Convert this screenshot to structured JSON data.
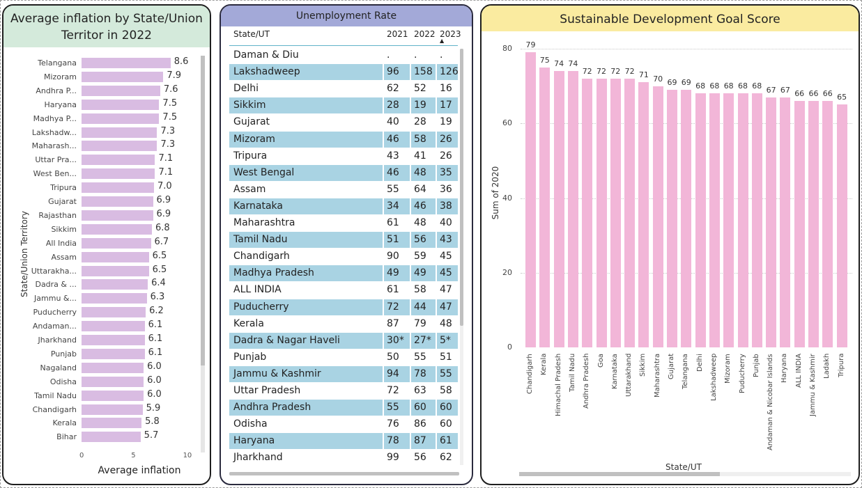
{
  "inflation": {
    "title": "Average inflation by State/Union Territor in 2022",
    "xlabel": "Average inflation",
    "ylabel": "State/Union Territory",
    "xticks": [
      "0",
      "5",
      "10"
    ],
    "max": 10.5,
    "rows": [
      {
        "label": "Telangana",
        "value": 8.6,
        "text": "8.6"
      },
      {
        "label": "Mizoram",
        "value": 7.9,
        "text": "7.9"
      },
      {
        "label": "Andhra P...",
        "value": 7.6,
        "text": "7.6"
      },
      {
        "label": "Haryana",
        "value": 7.5,
        "text": "7.5"
      },
      {
        "label": "Madhya P...",
        "value": 7.5,
        "text": "7.5"
      },
      {
        "label": "Lakshadw...",
        "value": 7.3,
        "text": "7.3"
      },
      {
        "label": "Maharash...",
        "value": 7.3,
        "text": "7.3"
      },
      {
        "label": "Uttar Pra...",
        "value": 7.1,
        "text": "7.1"
      },
      {
        "label": "West Ben...",
        "value": 7.1,
        "text": "7.1"
      },
      {
        "label": "Tripura",
        "value": 7.0,
        "text": "7.0"
      },
      {
        "label": "Gujarat",
        "value": 6.9,
        "text": "6.9"
      },
      {
        "label": "Rajasthan",
        "value": 6.9,
        "text": "6.9"
      },
      {
        "label": "Sikkim",
        "value": 6.8,
        "text": "6.8"
      },
      {
        "label": "All India",
        "value": 6.7,
        "text": "6.7"
      },
      {
        "label": "Assam",
        "value": 6.5,
        "text": "6.5"
      },
      {
        "label": "Uttarakha...",
        "value": 6.5,
        "text": "6.5"
      },
      {
        "label": "Dadra & ...",
        "value": 6.4,
        "text": "6.4"
      },
      {
        "label": "Jammu &...",
        "value": 6.3,
        "text": "6.3"
      },
      {
        "label": "Puducherry",
        "value": 6.2,
        "text": "6.2"
      },
      {
        "label": "Andaman...",
        "value": 6.1,
        "text": "6.1"
      },
      {
        "label": "Jharkhand",
        "value": 6.1,
        "text": "6.1"
      },
      {
        "label": "Punjab",
        "value": 6.1,
        "text": "6.1"
      },
      {
        "label": "Nagaland",
        "value": 6.0,
        "text": "6.0"
      },
      {
        "label": "Odisha",
        "value": 6.0,
        "text": "6.0"
      },
      {
        "label": "Tamil Nadu",
        "value": 6.0,
        "text": "6.0"
      },
      {
        "label": "Chandigarh",
        "value": 5.9,
        "text": "5.9"
      },
      {
        "label": "Kerala",
        "value": 5.8,
        "text": "5.8"
      },
      {
        "label": "Bihar",
        "value": 5.7,
        "text": "5.7"
      }
    ]
  },
  "unemployment": {
    "title": "Unemployment Rate",
    "headers": [
      "State/UT",
      "2021",
      "2022",
      "2023"
    ],
    "rows": [
      [
        "Daman & Diu",
        ".",
        ".",
        "."
      ],
      [
        "Lakshadweep",
        "96",
        "158",
        "126"
      ],
      [
        "Delhi",
        "62",
        "52",
        "16"
      ],
      [
        "Sikkim",
        "28",
        "19",
        "17"
      ],
      [
        "Gujarat",
        "40",
        "28",
        "19"
      ],
      [
        "Mizoram",
        "46",
        "58",
        "26"
      ],
      [
        "Tripura",
        "43",
        "41",
        "26"
      ],
      [
        "West Bengal",
        "46",
        "48",
        "35"
      ],
      [
        "Assam",
        "55",
        "64",
        "36"
      ],
      [
        "Karnataka",
        "34",
        "46",
        "38"
      ],
      [
        "Maharashtra",
        "61",
        "48",
        "40"
      ],
      [
        "Tamil Nadu",
        "51",
        "56",
        "43"
      ],
      [
        "Chandigarh",
        "90",
        "59",
        "45"
      ],
      [
        "Madhya Pradesh",
        "49",
        "49",
        "45"
      ],
      [
        "ALL INDIA",
        "61",
        "58",
        "47"
      ],
      [
        "Puducherry",
        "72",
        "44",
        "47"
      ],
      [
        "Kerala",
        "87",
        "79",
        "48"
      ],
      [
        "Dadra & Nagar Haveli",
        "30*",
        "27*",
        "5*"
      ],
      [
        "Punjab",
        "50",
        "55",
        "51"
      ],
      [
        "Jammu & Kashmir",
        "94",
        "78",
        "55"
      ],
      [
        "Uttar Pradesh",
        "72",
        "63",
        "58"
      ],
      [
        "Andhra Pradesh",
        "55",
        "60",
        "60"
      ],
      [
        "Odisha",
        "76",
        "86",
        "60"
      ],
      [
        "Haryana",
        "78",
        "87",
        "61"
      ],
      [
        "Jharkhand",
        "99",
        "56",
        "62"
      ]
    ]
  },
  "chart_data": {
    "type": "bar",
    "title": "Sustainable Development Goal Score",
    "xlabel": "State/UT",
    "ylabel": "Sum of 2020",
    "ylim": [
      0,
      80
    ],
    "yticks": [
      "0",
      "20",
      "40",
      "60",
      "80"
    ],
    "categories": [
      "Chandigarh",
      "Kerala",
      "Himachal Pradesh",
      "Tamil Nadu",
      "Andhra Pradesh",
      "Goa",
      "Karnataka",
      "Uttarakhand",
      "Sikkim",
      "Maharashtra",
      "Gujarat",
      "Telangana",
      "Delhi",
      "Lakshadweep",
      "Mizoram",
      "Puducherry",
      "Punjab",
      "Andaman & Nicobar Islands",
      "Haryana",
      "ALL INDIA",
      "Jammu & Kashmir",
      "Ladakh",
      "Tripura"
    ],
    "values": [
      79,
      75,
      74,
      74,
      72,
      72,
      72,
      72,
      71,
      70,
      69,
      69,
      68,
      68,
      68,
      68,
      68,
      67,
      67,
      66,
      66,
      66,
      65
    ]
  },
  "colors": {
    "inflation_bar": "#d9bce2",
    "table_alt_row": "#a9d3e3",
    "sdg_bar": "#f2b6d8"
  }
}
